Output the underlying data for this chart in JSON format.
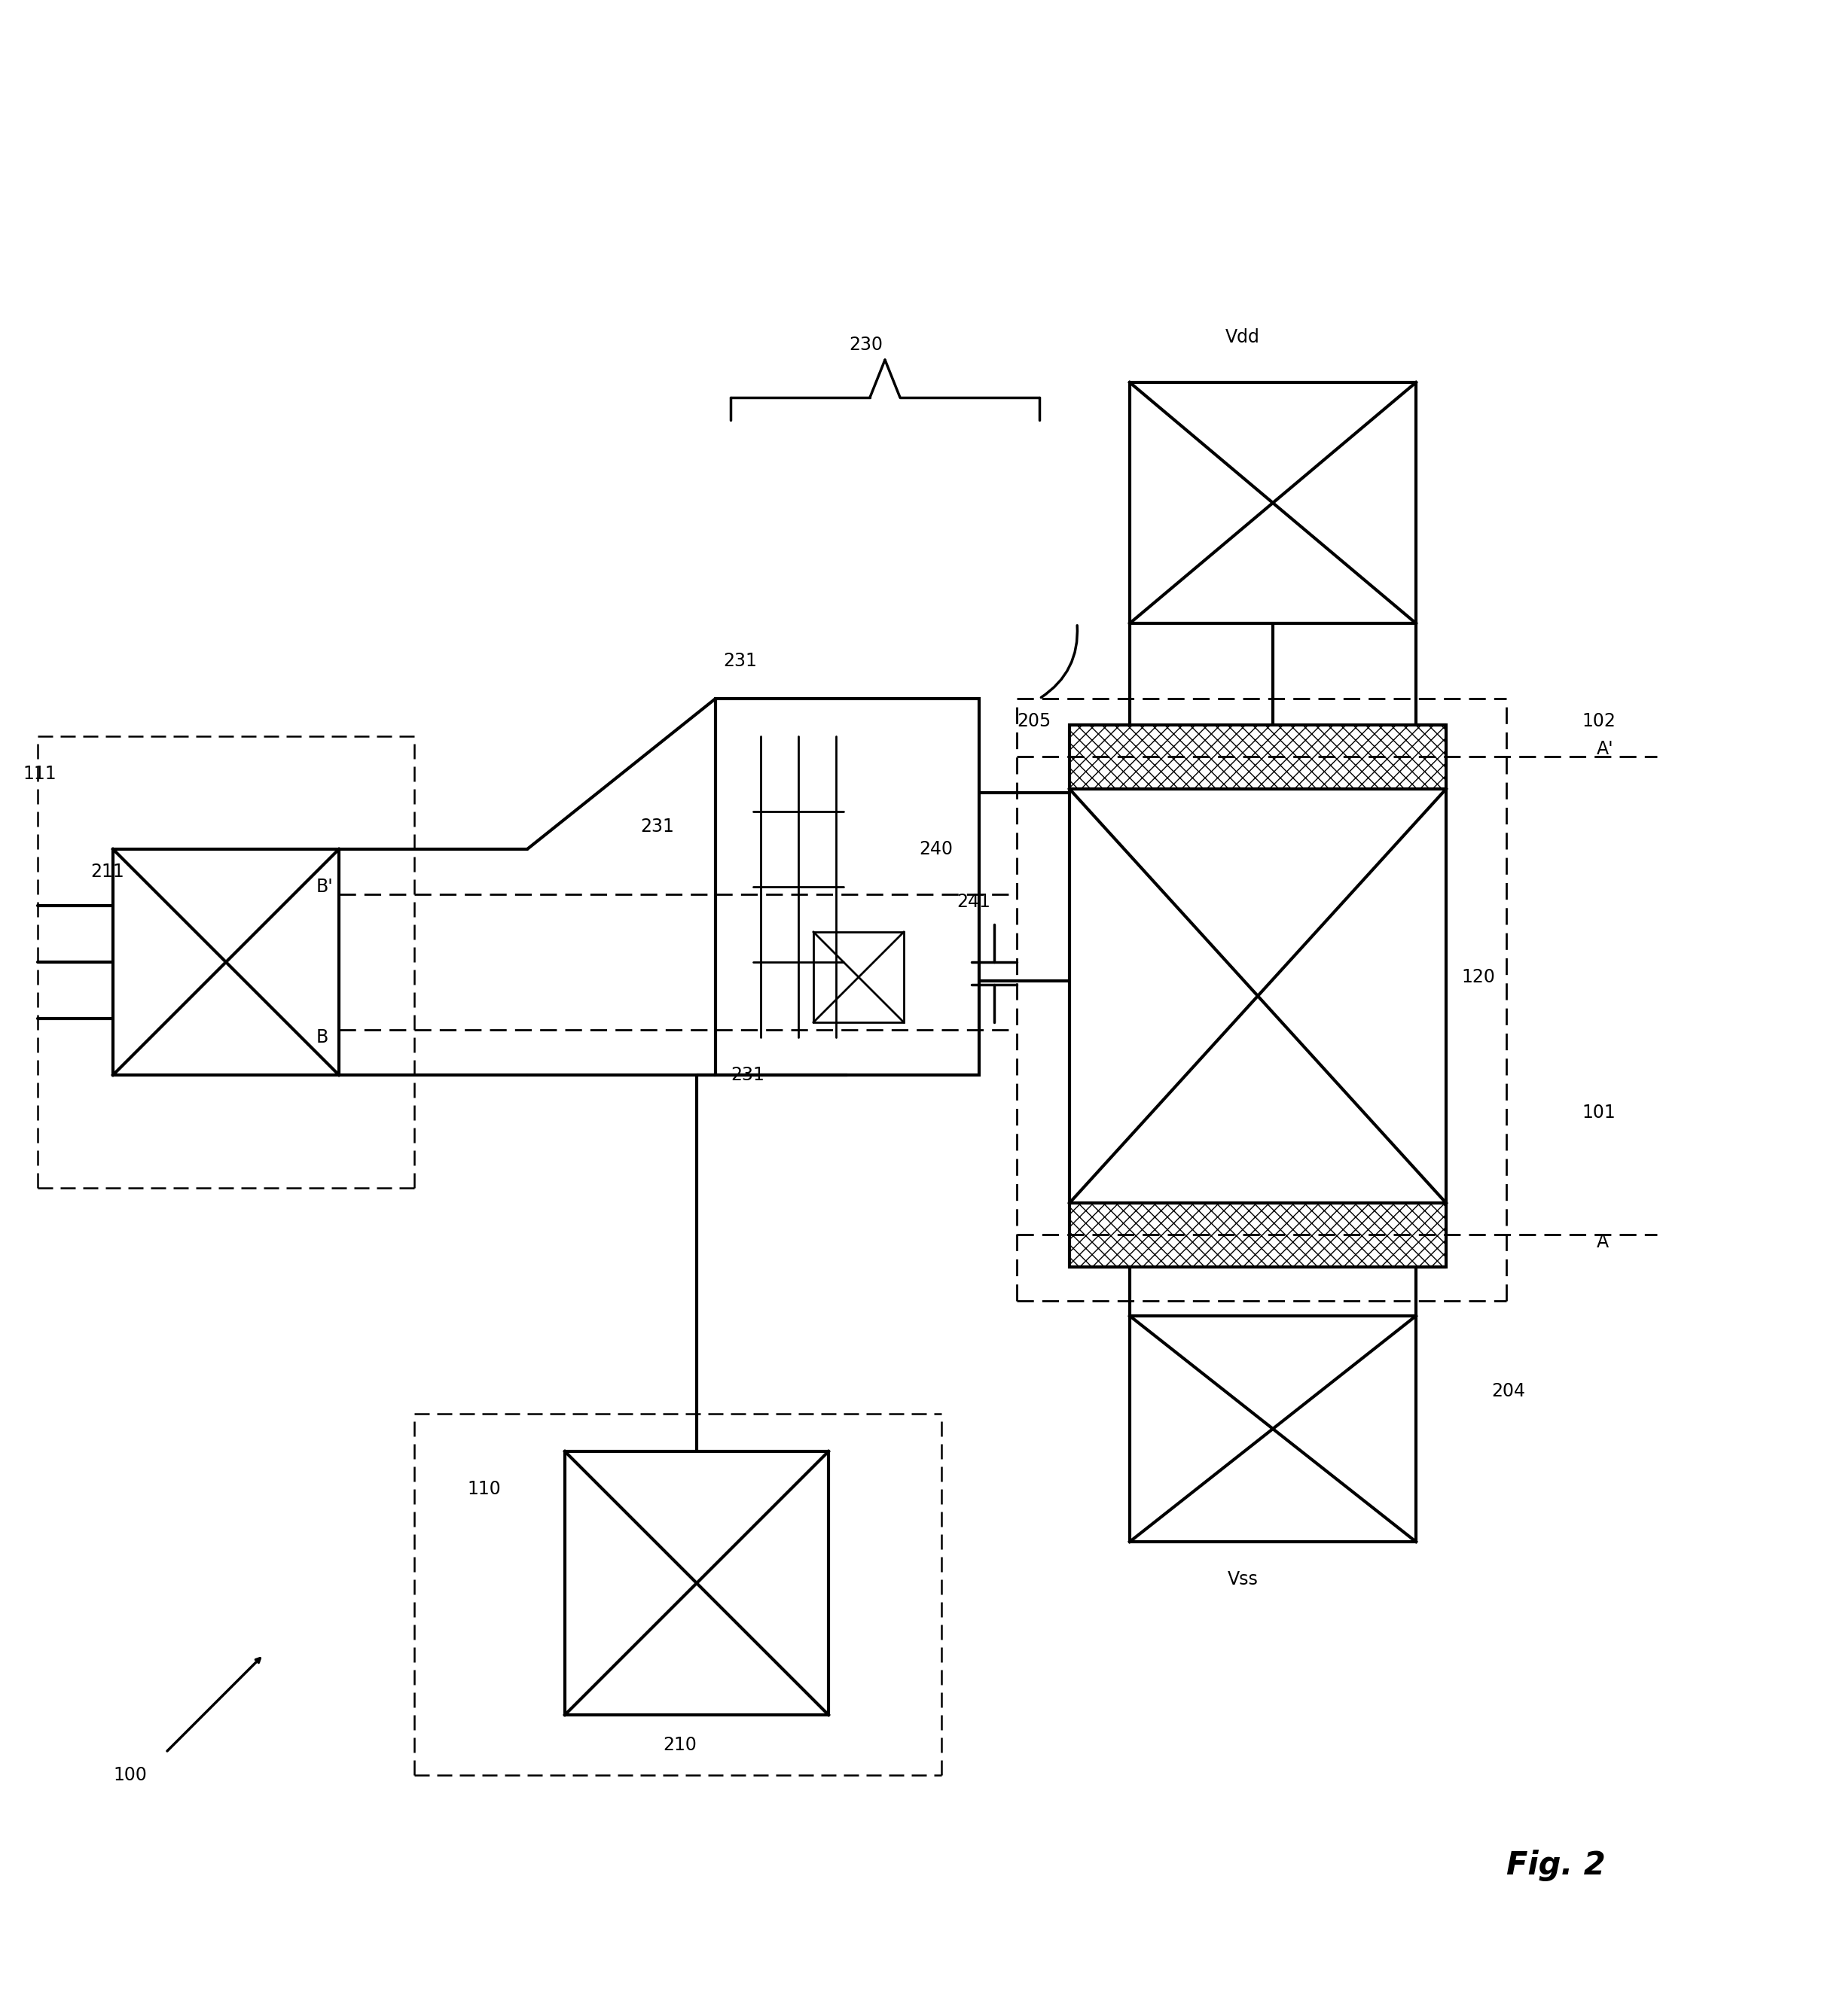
{
  "bg_color": "#ffffff",
  "line_color": "#000000",
  "hatch_color": "#000000",
  "fig_title": "Fig. 2",
  "label_100": "100",
  "label_110": "110",
  "label_111": "111",
  "label_210": "210",
  "label_211": "211",
  "label_230": "230",
  "label_231a": "231",
  "label_231b": "231",
  "label_231c": "231",
  "label_240": "240",
  "label_241": "241",
  "label_205": "205",
  "label_204": "204",
  "label_120": "120",
  "label_101": "101",
  "label_102": "102",
  "label_Vdd": "Vdd",
  "label_Vss": "Vss",
  "label_A": "A",
  "label_Aprime": "A'",
  "label_B": "B",
  "label_Bprime": "B'"
}
